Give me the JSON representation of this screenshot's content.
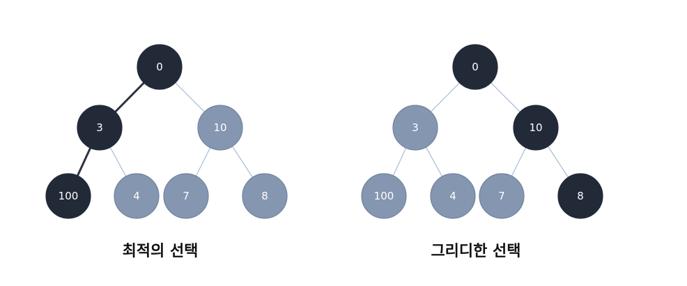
{
  "colors": {
    "dark_node": "#222a38",
    "light_node": "#8496b0",
    "light_node_stroke": "#6f82a0",
    "light_edge": "#a8bbd6",
    "dark_edge": "#2d3340"
  },
  "trees": [
    {
      "caption": "최적의 선택",
      "nodes": [
        {
          "id": "root",
          "label": "0",
          "highlighted": true
        },
        {
          "id": "left",
          "label": "3",
          "highlighted": true
        },
        {
          "id": "right",
          "label": "10",
          "highlighted": false
        },
        {
          "id": "left-left",
          "label": "100",
          "highlighted": true
        },
        {
          "id": "left-right",
          "label": "4",
          "highlighted": false
        },
        {
          "id": "right-left",
          "label": "7",
          "highlighted": false
        },
        {
          "id": "right-right",
          "label": "8",
          "highlighted": false
        }
      ],
      "edges": [
        {
          "from": "root",
          "to": "left",
          "highlighted": true
        },
        {
          "from": "root",
          "to": "right",
          "highlighted": false
        },
        {
          "from": "left",
          "to": "left-left",
          "highlighted": true
        },
        {
          "from": "left",
          "to": "left-right",
          "highlighted": false
        },
        {
          "from": "right",
          "to": "right-left",
          "highlighted": false
        },
        {
          "from": "right",
          "to": "right-right",
          "highlighted": false
        }
      ]
    },
    {
      "caption": "그리디한 선택",
      "nodes": [
        {
          "id": "root",
          "label": "0",
          "highlighted": true
        },
        {
          "id": "left",
          "label": "3",
          "highlighted": false
        },
        {
          "id": "right",
          "label": "10",
          "highlighted": true
        },
        {
          "id": "left-left",
          "label": "100",
          "highlighted": false
        },
        {
          "id": "left-right",
          "label": "4",
          "highlighted": false
        },
        {
          "id": "right-left",
          "label": "7",
          "highlighted": false
        },
        {
          "id": "right-right",
          "label": "8",
          "highlighted": true
        }
      ],
      "edges": [
        {
          "from": "root",
          "to": "left",
          "highlighted": false
        },
        {
          "from": "root",
          "to": "right",
          "highlighted": false
        },
        {
          "from": "left",
          "to": "left-left",
          "highlighted": false
        },
        {
          "from": "left",
          "to": "left-right",
          "highlighted": false
        },
        {
          "from": "right",
          "to": "right-left",
          "highlighted": false
        },
        {
          "from": "right",
          "to": "right-right",
          "highlighted": false
        }
      ]
    }
  ]
}
